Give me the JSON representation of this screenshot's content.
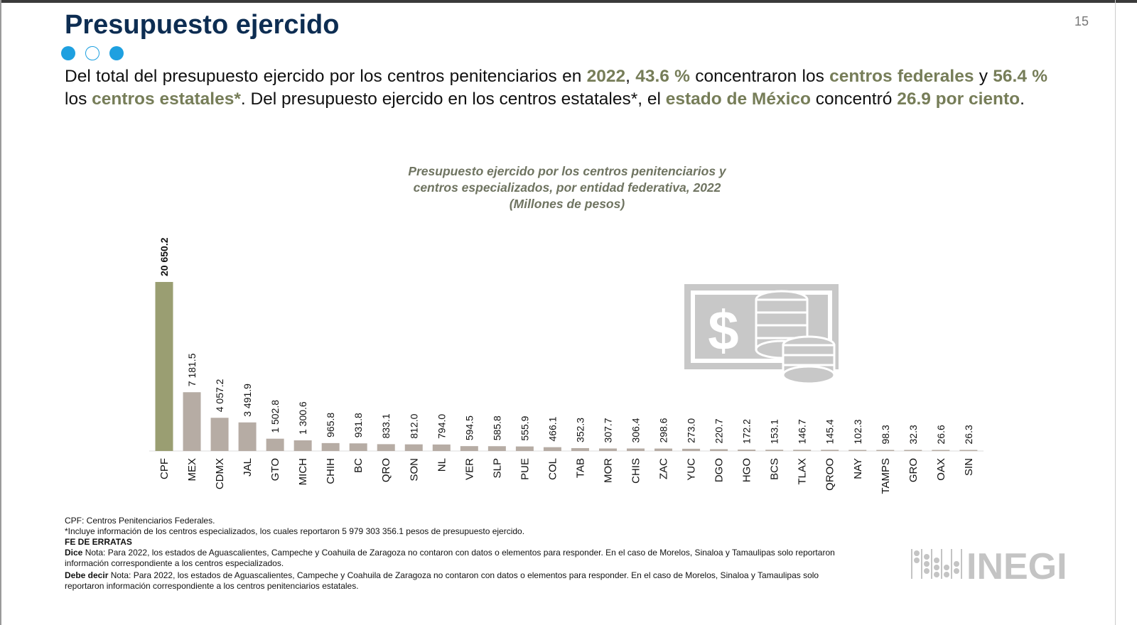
{
  "page": {
    "title": "Presupuesto ejercido",
    "page_number": "15"
  },
  "intro": {
    "t1": "Del total del presupuesto ejercido por los centros penitenciarios en ",
    "h1": "2022",
    "t2": ", ",
    "h2": "43.6 %",
    "t3": " concentraron los ",
    "h3": "centros federales",
    "t4": " y ",
    "h4": "56.4 %",
    "t5": " los ",
    "h5": "centros estatales*",
    "t6": ". Del presupuesto ejercido en los centros estatales*, el ",
    "h6": "estado de México",
    "t7": " concentró ",
    "h7": "26.9 por ciento",
    "t8": "."
  },
  "colors": {
    "federal": "#9a9e72",
    "state": "#b6aca4",
    "accent": "#1ea0e0",
    "title": "#0d2d52"
  },
  "chart_data": {
    "type": "bar",
    "title_lines": [
      "Presupuesto ejercido por los centros penitenciarios y",
      "centros especializados, por entidad federativa, 2022",
      "(Millones de pesos)"
    ],
    "xlabel": "",
    "ylabel": "Millones de pesos",
    "categories": [
      "CPF",
      "MEX",
      "CDMX",
      "JAL",
      "GTO",
      "MICH",
      "CHIH",
      "BC",
      "QRO",
      "SON",
      "NL",
      "VER",
      "SLP",
      "PUE",
      "COL",
      "TAB",
      "MOR",
      "CHIS",
      "ZAC",
      "YUC",
      "DGO",
      "HGO",
      "BCS",
      "TLAX",
      "QROO",
      "NAY",
      "TAMPS",
      "GRO",
      "OAX",
      "SIN"
    ],
    "values": [
      20650.2,
      7181.5,
      4057.2,
      3491.9,
      1502.8,
      1300.6,
      965.8,
      931.8,
      833.1,
      812.0,
      794.0,
      594.5,
      585.8,
      555.9,
      466.1,
      352.3,
      307.7,
      306.4,
      298.6,
      273.0,
      220.7,
      172.2,
      153.1,
      146.7,
      145.4,
      102.3,
      98.3,
      32.3,
      26.6,
      26.3
    ],
    "value_labels": [
      "20 650.2",
      "7 181.5",
      "4 057.2",
      "3 491.9",
      "1 502.8",
      "1 300.6",
      "965.8",
      "931.8",
      "833.1",
      "812.0",
      "794.0",
      "594.5",
      "585.8",
      "555.9",
      "466.1",
      "352.3",
      "307.7",
      "306.4",
      "298.6",
      "273.0",
      "220.7",
      "172.2",
      "153.1",
      "146.7",
      "145.4",
      "102.3",
      "98.3",
      "32.3",
      "26.6",
      "26.3"
    ],
    "ylim": [
      0,
      21000
    ],
    "grid": false
  },
  "notes": {
    "cpf": "CPF: Centros Penitenciarios Federales.",
    "incl": "*Incluye información de los centros especializados, los cuales reportaron 5 979 303 356.1 pesos de presupuesto ejercido.",
    "fe": "FE DE ERRATAS",
    "dice_label": "Dice",
    "dice": " Nota: Para 2022, los estados de Aguascalientes, Campeche y Coahuila de Zaragoza no contaron con datos o elementos para responder. En el caso de Morelos, Sinaloa y Tamaulipas solo reportaron información correspondiente a los centros especializados.",
    "debe_label": "Debe decir",
    "debe": " Nota: Para 2022, los estados de Aguascalientes, Campeche y Coahuila de Zaragoza no contaron con datos o elementos para responder. En el caso de Morelos, Sinaloa y Tamaulipas solo reportaron información correspondiente a los centros penitenciarios estatales."
  },
  "logo": {
    "text": "INEGI"
  }
}
